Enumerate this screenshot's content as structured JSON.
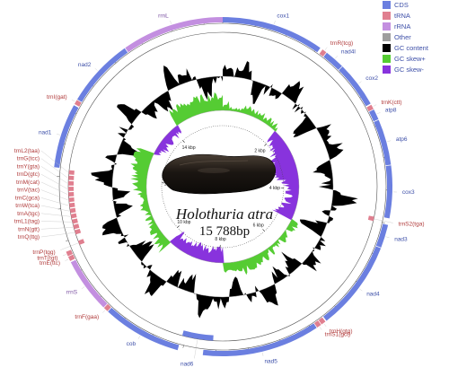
{
  "genome": {
    "species": "Holothuria atra",
    "size_label": "15 788bp",
    "length_bp": 15788
  },
  "legend": [
    {
      "label": "CDS",
      "color": "#6b7fe0"
    },
    {
      "label": "tRNA",
      "color": "#e07f8f"
    },
    {
      "label": "rRNA",
      "color": "#c38fe0"
    },
    {
      "label": "Other",
      "color": "#9e9e9e"
    },
    {
      "label": "GC content",
      "color": "#000000"
    },
    {
      "label": "GC skew+",
      "color": "#55cc33"
    },
    {
      "label": "GC skew-",
      "color": "#8833dd"
    }
  ],
  "scale_labels": [
    {
      "label": "2 kbp",
      "bp": 2000
    },
    {
      "label": "4 kbp",
      "bp": 4000
    },
    {
      "label": "6 kbp",
      "bp": 6000
    },
    {
      "label": "8 kbp",
      "bp": 8000
    },
    {
      "label": "10 kbp",
      "bp": 10000
    },
    {
      "label": "12 kbp",
      "bp": 12000
    },
    {
      "label": "14 kbp",
      "bp": 14000
    }
  ],
  "features": [
    {
      "name": "cox1",
      "type": "CDS",
      "strand": "+",
      "start": 0,
      "end": 1540
    },
    {
      "name": "trnR(tcg)",
      "type": "tRNA",
      "strand": "+",
      "start": 1580,
      "end": 1650
    },
    {
      "name": "nad4l",
      "type": "CDS",
      "strand": "+",
      "start": 1660,
      "end": 1960
    },
    {
      "name": "cox2",
      "type": "CDS",
      "strand": "+",
      "start": 1970,
      "end": 2660
    },
    {
      "name": "trnK(ctt)",
      "type": "tRNA",
      "strand": "+",
      "start": 2680,
      "end": 2750
    },
    {
      "name": "atp8",
      "type": "CDS",
      "strand": "+",
      "start": 2760,
      "end": 2920
    },
    {
      "name": "atp6",
      "type": "CDS",
      "strand": "+",
      "start": 2930,
      "end": 3620
    },
    {
      "name": "cox3",
      "type": "CDS",
      "strand": "+",
      "start": 3630,
      "end": 4420
    },
    {
      "name": "trnS2(tga)",
      "type": "tRNA",
      "strand": "-",
      "start": 4440,
      "end": 4510
    },
    {
      "name": "nad3",
      "type": "CDS",
      "strand": "+",
      "start": 4520,
      "end": 4870
    },
    {
      "name": "nad4",
      "type": "CDS",
      "strand": "+",
      "start": 4880,
      "end": 6240
    },
    {
      "name": "trnH(gtg)",
      "type": "tRNA",
      "strand": "+",
      "start": 6260,
      "end": 6330
    },
    {
      "name": "trnS1(gct)",
      "type": "tRNA",
      "strand": "+",
      "start": 6340,
      "end": 6410
    },
    {
      "name": "nad5",
      "type": "CDS",
      "strand": "+",
      "start": 6420,
      "end": 8190
    },
    {
      "name": "nad6",
      "type": "CDS",
      "strand": "-",
      "start": 8050,
      "end": 8560
    },
    {
      "name": "cob",
      "type": "CDS",
      "strand": "+",
      "start": 8570,
      "end": 9760
    },
    {
      "name": "trnF(gaa)",
      "type": "tRNA",
      "strand": "+",
      "start": 9770,
      "end": 9840
    },
    {
      "name": "rrnS",
      "type": "rRNA",
      "strand": "+",
      "start": 9850,
      "end": 10680
    },
    {
      "name": "trnE(ttc)",
      "type": "tRNA",
      "strand": "+",
      "start": 10700,
      "end": 10770
    },
    {
      "name": "trnT(tgt)",
      "type": "tRNA",
      "strand": "+",
      "start": 10780,
      "end": 10850
    },
    {
      "name": "trnP(tgg)",
      "type": "tRNA",
      "strand": "-",
      "start": 10870,
      "end": 10940
    },
    {
      "name": "trnQ(ttg)",
      "type": "tRNA",
      "strand": "-",
      "start": 11050,
      "end": 11120
    },
    {
      "name": "trnN(gtt)",
      "type": "tRNA",
      "strand": "-",
      "start": 11140,
      "end": 11210
    },
    {
      "name": "trnL1(tag)",
      "type": "tRNA",
      "strand": "-",
      "start": 11230,
      "end": 11300
    },
    {
      "name": "trnA(tgc)",
      "type": "tRNA",
      "strand": "-",
      "start": 11320,
      "end": 11390
    },
    {
      "name": "trnW(tca)",
      "type": "tRNA",
      "strand": "-",
      "start": 11410,
      "end": 11480
    },
    {
      "name": "trnC(gca)",
      "type": "tRNA",
      "strand": "-",
      "start": 11500,
      "end": 11570
    },
    {
      "name": "trnV(tac)",
      "type": "tRNA",
      "strand": "-",
      "start": 11590,
      "end": 11660
    },
    {
      "name": "trnM(cat)",
      "type": "tRNA",
      "strand": "-",
      "start": 11680,
      "end": 11750
    },
    {
      "name": "trnD(gtc)",
      "type": "tRNA",
      "strand": "-",
      "start": 11770,
      "end": 11840
    },
    {
      "name": "trnY(gta)",
      "type": "tRNA",
      "strand": "-",
      "start": 11860,
      "end": 11930
    },
    {
      "name": "trnG(tcc)",
      "type": "tRNA",
      "strand": "-",
      "start": 11950,
      "end": 12020
    },
    {
      "name": "trnL2(taa)",
      "type": "tRNA",
      "strand": "-",
      "start": 12040,
      "end": 12110
    },
    {
      "name": "nad1",
      "type": "CDS",
      "strand": "+",
      "start": 12130,
      "end": 13100
    },
    {
      "name": "trnI(gat)",
      "type": "tRNA",
      "strand": "+",
      "start": 13120,
      "end": 13190
    },
    {
      "name": "nad2",
      "type": "CDS",
      "strand": "+",
      "start": 13200,
      "end": 14240
    },
    {
      "name": "rrnL",
      "type": "rRNA",
      "strand": "+",
      "start": 14250,
      "end": 15788
    }
  ]
}
